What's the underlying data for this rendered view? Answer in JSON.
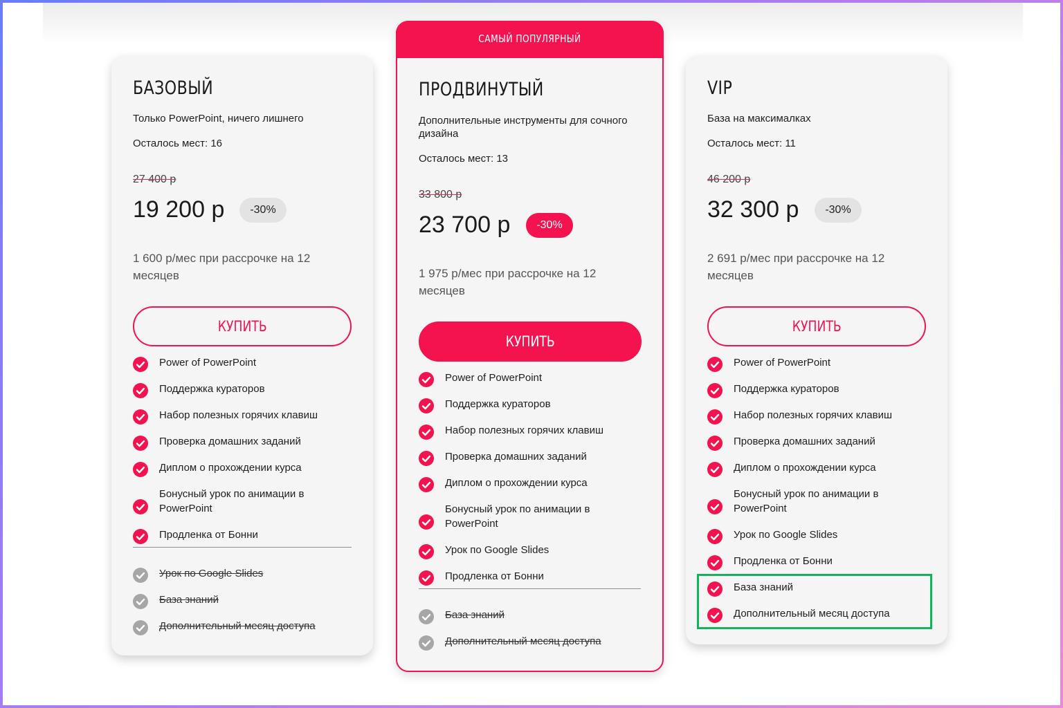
{
  "colors": {
    "accent": "#f4124f",
    "check_inactive": "#a6a6a6",
    "highlight": "#13b45a",
    "card_bg": "#f5f5f5"
  },
  "popular_badge": "САМЫЙ ПОПУЛЯРНЫЙ",
  "plans": [
    {
      "title": "БАЗОВЫЙ",
      "description": "Только PowerPoint, ничего лишнего",
      "seats": "Осталось мест: 16",
      "old_price": "27 400 р",
      "price": "19 200 р",
      "discount": "-30%",
      "installment": "1 600 р/мес при рассрочке на 12 месяцев",
      "buy_label": "КУПИТЬ",
      "features": [
        {
          "label": "Power of PowerPoint",
          "included": true
        },
        {
          "label": "Поддержка кураторов",
          "included": true
        },
        {
          "label": "Набор полезных горячих клавиш",
          "included": true
        },
        {
          "label": "Проверка домашних заданий",
          "included": true
        },
        {
          "label": "Диплом о прохождении курса",
          "included": true
        },
        {
          "label": "Бонусный урок по анимации в PowerPoint",
          "included": true
        },
        {
          "label": "Продленка от Бонни",
          "included": true
        },
        {
          "label": "Урок по Google Slides",
          "included": false
        },
        {
          "label": "База знаний",
          "included": false
        },
        {
          "label": "Дополнительный месяц доступа",
          "included": false
        }
      ]
    },
    {
      "title": "ПРОДВИНУТЫЙ",
      "description": "Дополнительные инструменты для сочного дизайна",
      "seats": "Осталось мест: 13",
      "old_price": "33 800 р",
      "price": "23 700 р",
      "discount": "-30%",
      "installment": "1 975 р/мес при рассрочке на 12 месяцев",
      "buy_label": "КУПИТЬ",
      "features": [
        {
          "label": "Power of PowerPoint",
          "included": true
        },
        {
          "label": "Поддержка кураторов",
          "included": true
        },
        {
          "label": "Набор полезных горячих клавиш",
          "included": true
        },
        {
          "label": "Проверка домашних заданий",
          "included": true
        },
        {
          "label": "Диплом о прохождении курса",
          "included": true
        },
        {
          "label": "Бонусный урок по анимации в PowerPoint",
          "included": true
        },
        {
          "label": "Урок по Google Slides",
          "included": true
        },
        {
          "label": "Продленка от Бонни",
          "included": true
        },
        {
          "label": "База знаний",
          "included": false
        },
        {
          "label": "Дополнительный месяц доступа",
          "included": false
        }
      ]
    },
    {
      "title": "VIP",
      "description": "База на максималках",
      "seats": "Осталось мест: 11",
      "old_price": "46 200 р",
      "price": "32 300 р",
      "discount": "-30%",
      "installment": "2 691 р/мес при рассрочке на 12 месяцев",
      "buy_label": "КУПИТЬ",
      "features": [
        {
          "label": "Power of PowerPoint",
          "included": true
        },
        {
          "label": "Поддержка кураторов",
          "included": true
        },
        {
          "label": "Набор полезных горячих клавиш",
          "included": true
        },
        {
          "label": "Проверка домашних заданий",
          "included": true
        },
        {
          "label": "Диплом о прохождении курса",
          "included": true
        },
        {
          "label": "Бонусный урок по анимации в PowerPoint",
          "included": true
        },
        {
          "label": "Урок по Google Slides",
          "included": true
        },
        {
          "label": "Продленка от Бонни",
          "included": true
        },
        {
          "label": "База знаний",
          "included": true
        },
        {
          "label": "Дополнительный месяц доступа",
          "included": true
        }
      ]
    }
  ]
}
